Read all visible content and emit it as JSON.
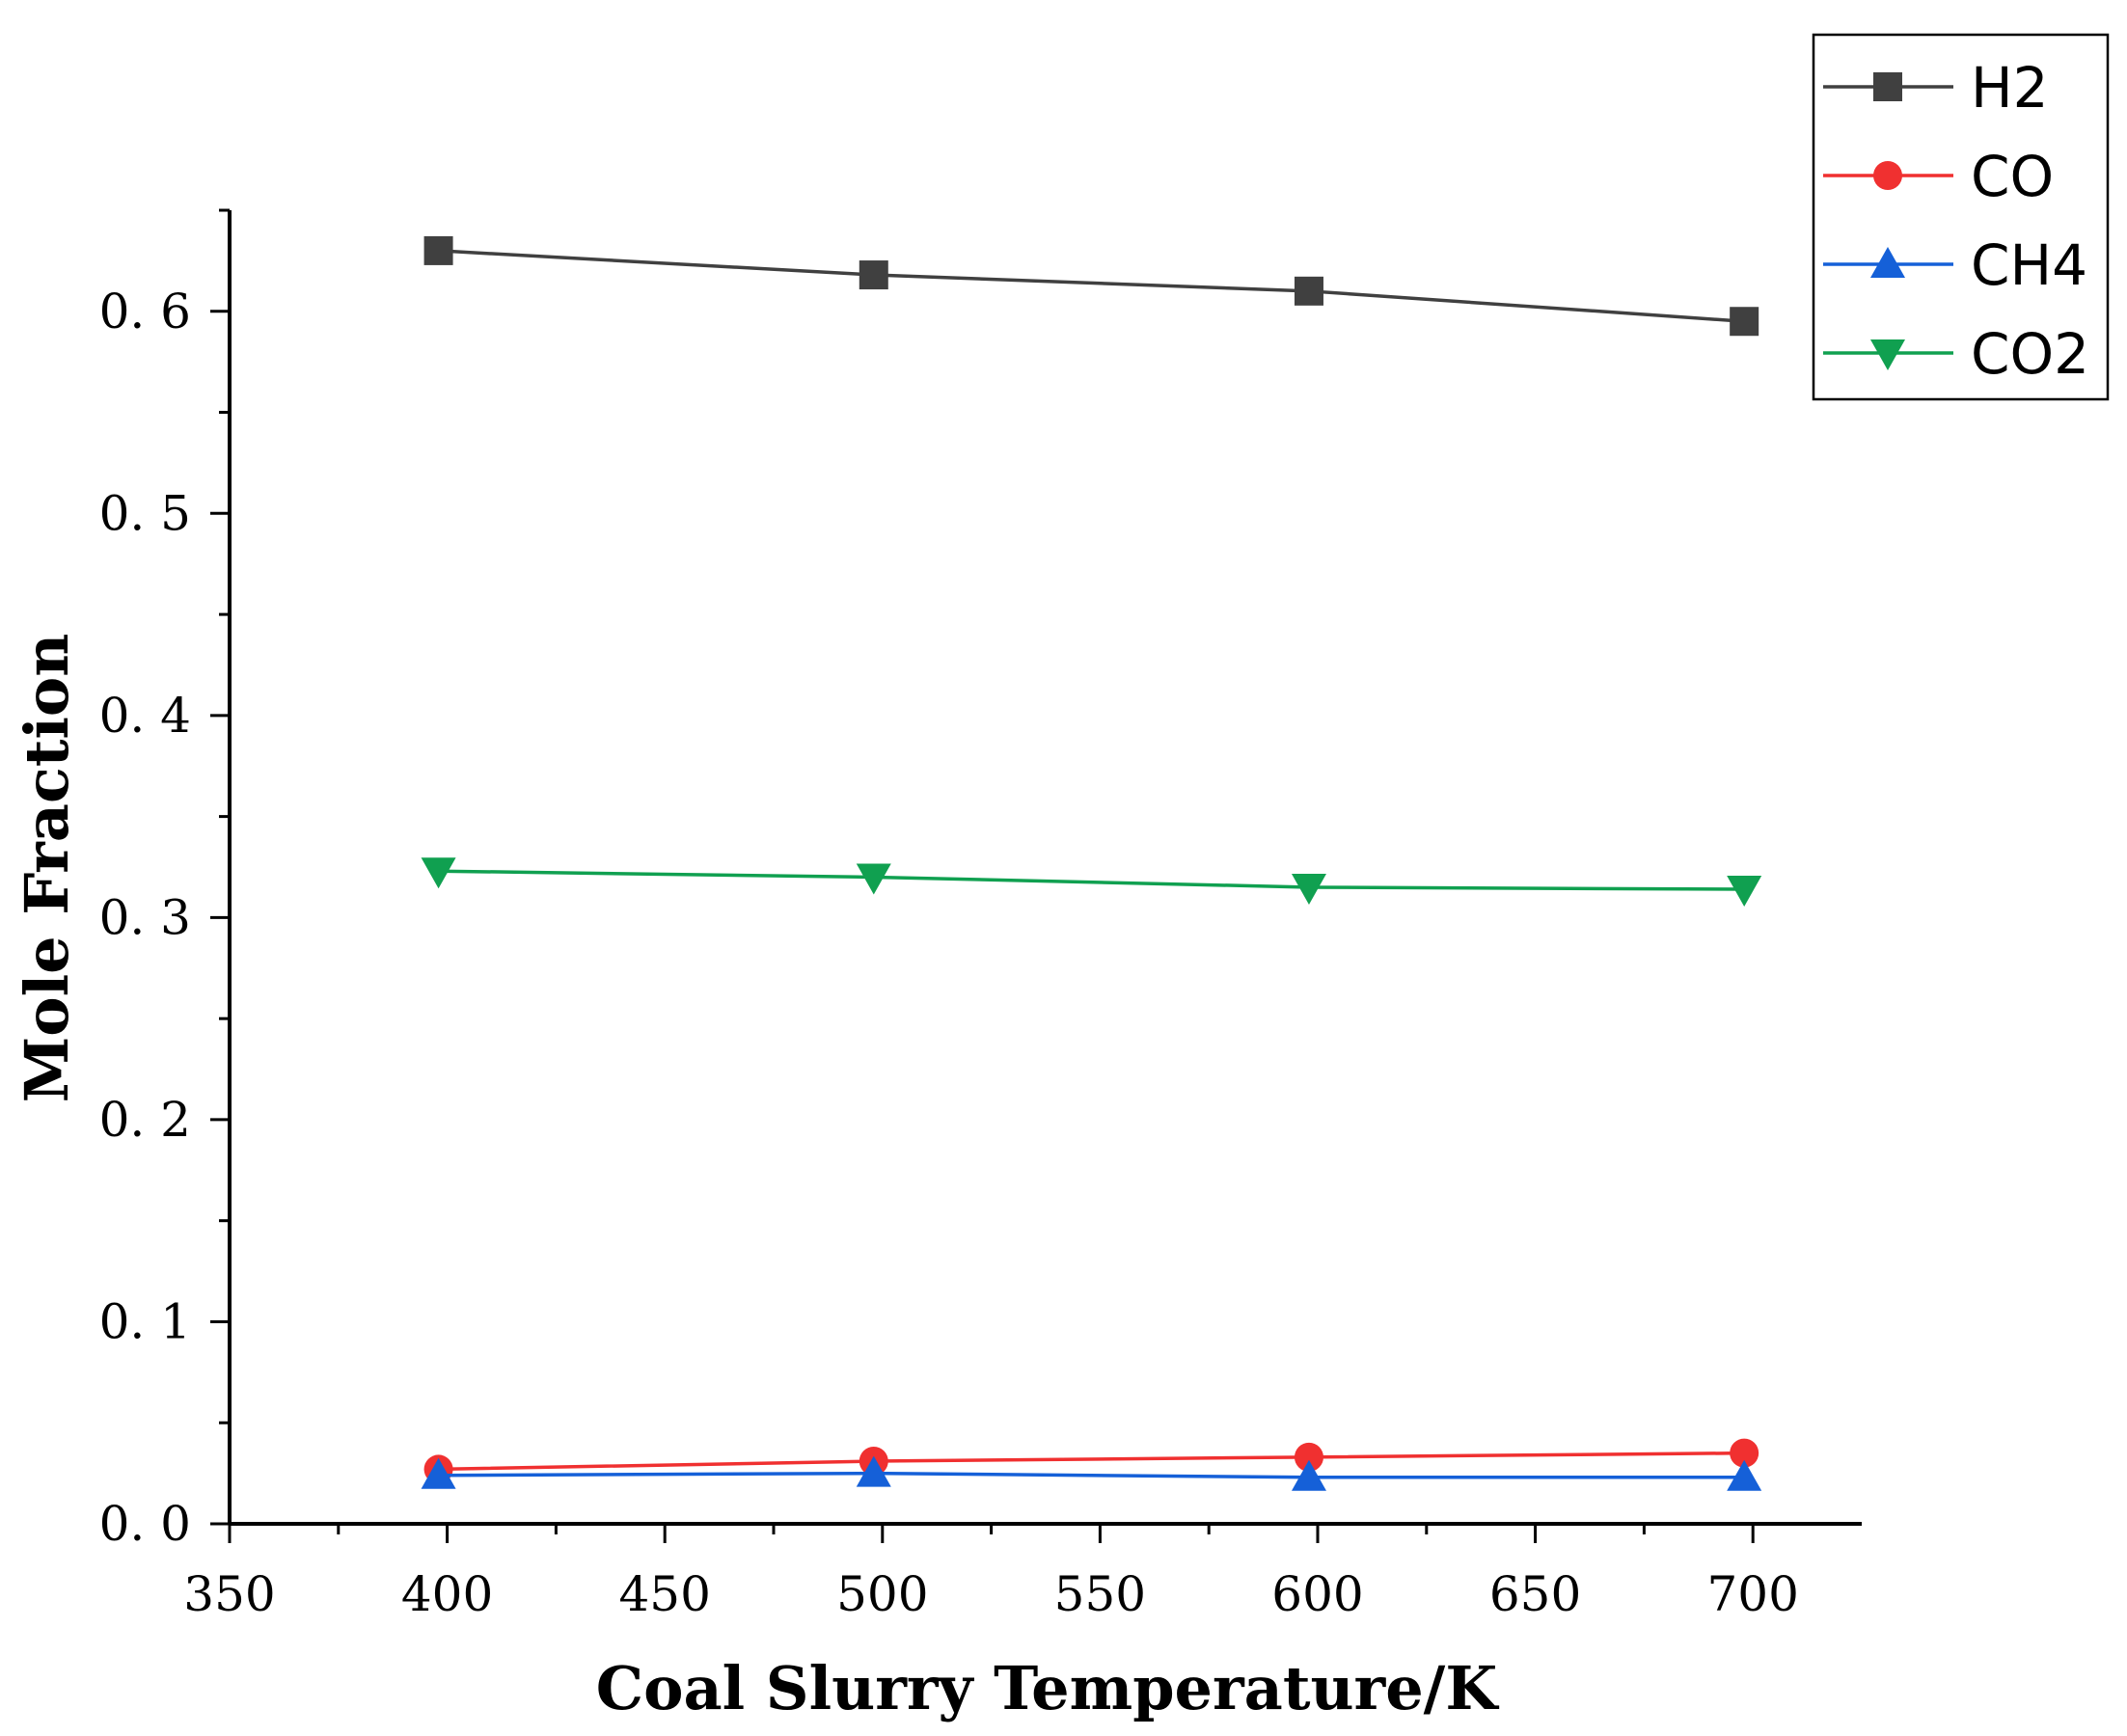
{
  "chart_data": {
    "type": "line",
    "title": "",
    "xlabel": "Coal Slurry Temperature/K",
    "ylabel": "Mole Fraction",
    "xlim": [
      350,
      725
    ],
    "ylim": [
      0,
      0.65
    ],
    "x_ticks": [
      350,
      400,
      450,
      500,
      550,
      600,
      650,
      700
    ],
    "x_tick_labels": [
      "350",
      "400",
      "450",
      "500",
      "550",
      "600",
      "650",
      "700"
    ],
    "y_ticks": [
      0.0,
      0.1,
      0.2,
      0.3,
      0.4,
      0.5,
      0.6
    ],
    "y_tick_labels": [
      "0. 0",
      "0. 1",
      "0. 2",
      "0. 3",
      "0. 4",
      "0. 5",
      "0. 6"
    ],
    "x": [
      398,
      498,
      598,
      698
    ],
    "series": [
      {
        "name": "H2",
        "color": "#404040",
        "marker": "square",
        "values": [
          0.63,
          0.618,
          0.61,
          0.595
        ]
      },
      {
        "name": "CO",
        "color": "#f03030",
        "marker": "circle",
        "values": [
          0.027,
          0.031,
          0.033,
          0.035
        ]
      },
      {
        "name": "CH4",
        "color": "#1560d8",
        "marker": "triangle-up",
        "values": [
          0.024,
          0.025,
          0.023,
          0.023
        ]
      },
      {
        "name": "CO2",
        "color": "#10a050",
        "marker": "triangle-down",
        "values": [
          0.323,
          0.32,
          0.315,
          0.314
        ]
      }
    ],
    "grid": false,
    "legend_position": "top-right"
  }
}
